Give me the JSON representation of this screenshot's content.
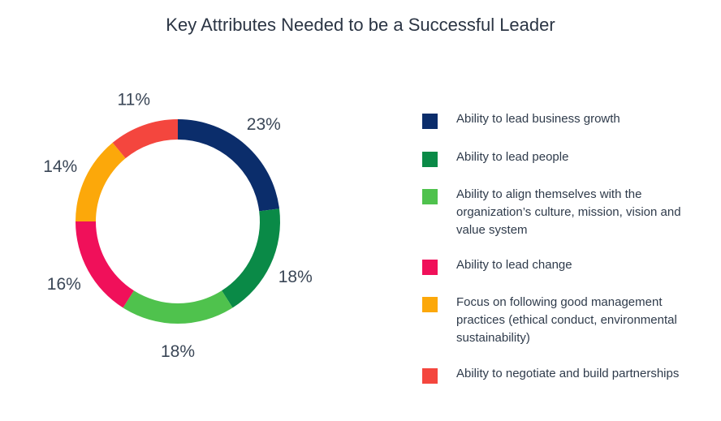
{
  "chart_data": {
    "type": "pie",
    "title": "Key Attributes Needed to be a Successful Leader",
    "categories": [
      "Ability to lead business growth",
      "Ability to lead people",
      "Ability to align themselves with the organization’s culture, mission, vision and value system",
      "Ability to lead change",
      "Focus on following good management practices (ethical conduct, environmental sustainability)",
      "Ability to negotiate and build partnerships"
    ],
    "values": [
      23,
      18,
      18,
      16,
      14,
      11
    ],
    "value_labels": [
      "23%",
      "18%",
      "18%",
      "16%",
      "14%",
      "11%"
    ],
    "colors": [
      "#0b2d6b",
      "#0a8a47",
      "#4fc24d",
      "#f0105a",
      "#fca80a",
      "#f4463e"
    ],
    "legend_placement": "right",
    "donut": true
  }
}
